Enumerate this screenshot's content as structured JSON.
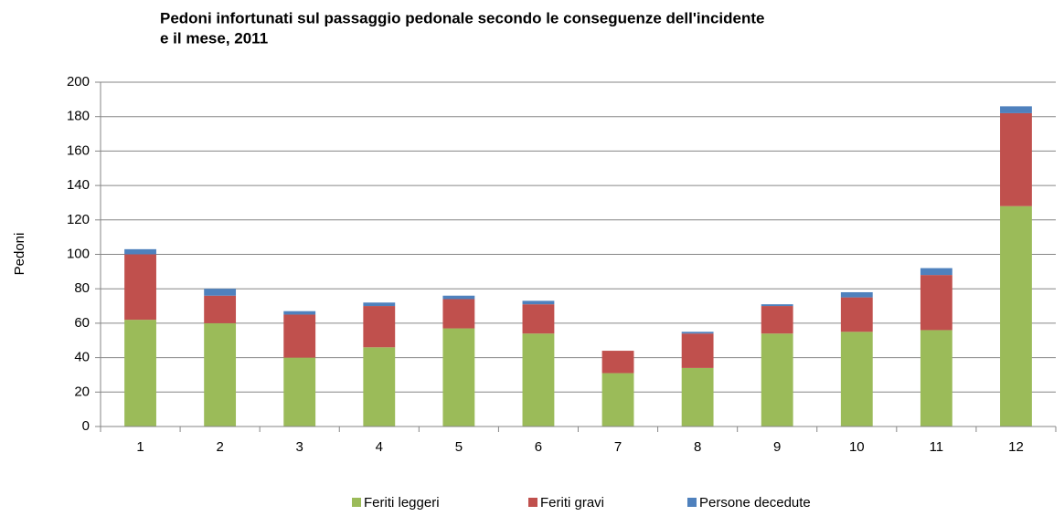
{
  "chart_data": {
    "type": "stacked_bar",
    "title": [
      "Pedoni infortunati sul passaggio pedonale secondo le conseguenze dell'incidente",
      "e il mese, 2011"
    ],
    "y_label": "Pedoni",
    "categories": [
      "1",
      "2",
      "3",
      "4",
      "5",
      "6",
      "7",
      "8",
      "9",
      "10",
      "11",
      "12"
    ],
    "series": [
      {
        "name": "Feriti leggeri",
        "color": "#9bbb59",
        "values": [
          62,
          60,
          40,
          46,
          57,
          54,
          31,
          34,
          54,
          55,
          56,
          128
        ]
      },
      {
        "name": "Feriti gravi",
        "color": "#c0504d",
        "values": [
          38,
          16,
          25,
          24,
          17,
          17,
          13,
          20,
          16,
          20,
          32,
          54
        ]
      },
      {
        "name": "Persone decedute",
        "color": "#4f81bd",
        "values": [
          3,
          4,
          2,
          2,
          2,
          2,
          0,
          1,
          1,
          3,
          4,
          4
        ]
      }
    ],
    "ylim": [
      0,
      200
    ],
    "yticks": [
      0,
      20,
      40,
      60,
      80,
      100,
      120,
      140,
      160,
      180,
      200
    ],
    "grid": true,
    "legend": "bottom"
  }
}
